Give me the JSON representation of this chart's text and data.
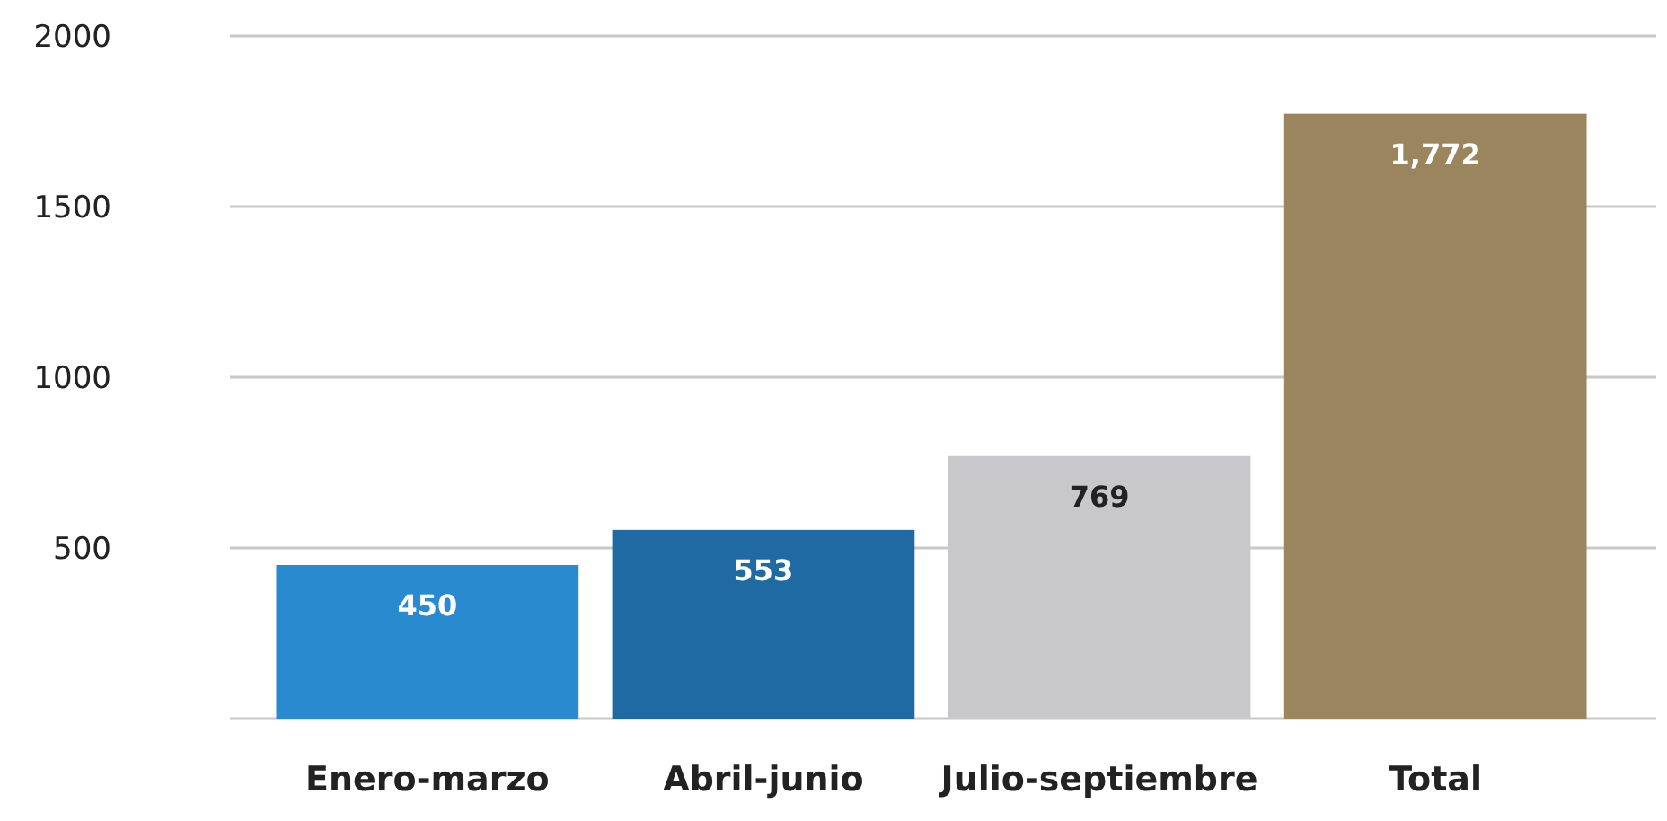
{
  "chart_data": {
    "type": "bar",
    "categories": [
      "Enero-marzo",
      "Abril-junio",
      "Julio-septiembre",
      "Total"
    ],
    "values": [
      450,
      553,
      769,
      1772
    ],
    "colors": [
      "#2a8ad0",
      "#1f6aa3",
      "#c8c8ca",
      "#9a855f"
    ],
    "value_labels": [
      "450",
      "553",
      "769",
      "1,772"
    ],
    "ylim": [
      0,
      2000
    ],
    "yticks": [
      500,
      1000,
      1500,
      2000
    ],
    "grid": "y"
  }
}
